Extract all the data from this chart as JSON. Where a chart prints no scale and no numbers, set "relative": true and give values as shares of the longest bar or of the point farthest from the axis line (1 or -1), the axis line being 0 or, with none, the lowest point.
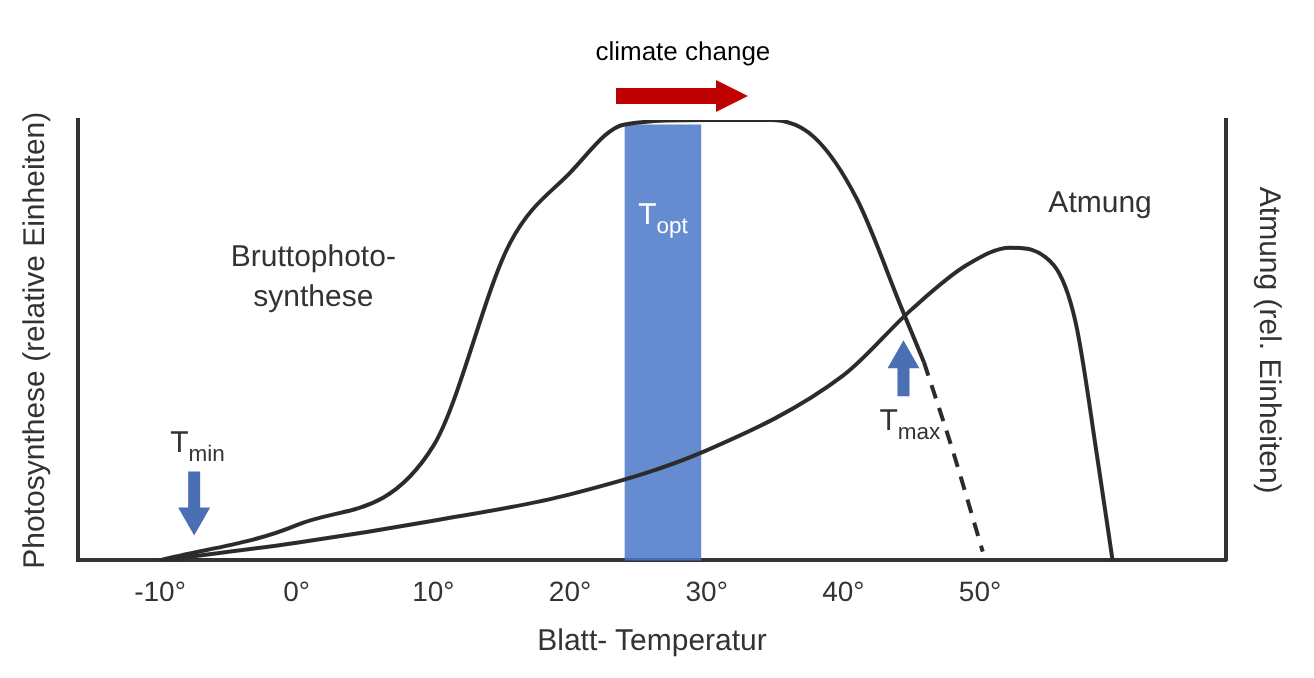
{
  "chart_data": {
    "type": "line",
    "relative": true,
    "xlabel": "Blatt- Temperatur",
    "ylabel": "Photosynthese (relative Einheiten)",
    "y2label": "Atmung (rel. Einheiten)",
    "xlim": [
      -16,
      68
    ],
    "xticks": [
      {
        "value": -10,
        "label": "-10°"
      },
      {
        "value": 0,
        "label": "0°"
      },
      {
        "value": 10,
        "label": "10°"
      },
      {
        "value": 20,
        "label": "20°"
      },
      {
        "value": 30,
        "label": "30°"
      },
      {
        "value": 40,
        "label": "40°"
      },
      {
        "value": 50,
        "label": "50°"
      }
    ],
    "series": [
      {
        "name": "Bruttophoto-synthese",
        "color": "#2b2b2b",
        "x": [
          -10,
          0,
          10,
          15.6,
          20,
          24,
          30,
          34.7,
          37.9,
          41,
          44.3,
          45.9
        ],
        "values": [
          0,
          0.08,
          0.26,
          0.72,
          0.88,
          0.99,
          1,
          1,
          0.96,
          0.82,
          0.57,
          0.45
        ]
      },
      {
        "color": "#2b2b2b",
        "line_style": "dashed",
        "x": [
          45.9,
          48,
          50.2
        ],
        "values": [
          0.45,
          0.25,
          0.02
        ]
      },
      {
        "name": "Atmung",
        "color": "#2b2b2b",
        "x": [
          -10,
          0,
          10,
          20,
          30,
          40,
          45,
          49,
          52.2,
          55.4,
          57,
          58.6,
          59.7
        ],
        "values": [
          0,
          0.04,
          0.09,
          0.15,
          0.25,
          0.42,
          0.57,
          0.67,
          0.71,
          0.67,
          0.54,
          0.23,
          0
        ]
      }
    ],
    "bands": [
      {
        "axis": "x",
        "from": 24,
        "to": 29.6,
        "label": "T$_{opt}$",
        "color": "#4a78c8"
      }
    ],
    "annotations": [
      {
        "text": "T$_{min}$",
        "x": -7.5,
        "y": 0.02
      },
      {
        "text": "T$_{max}$",
        "x": 44.4,
        "y": 0.5
      },
      "climate change"
    ],
    "grid": false,
    "legend": false,
    "marker": "none",
    "line_style": "solid"
  }
}
